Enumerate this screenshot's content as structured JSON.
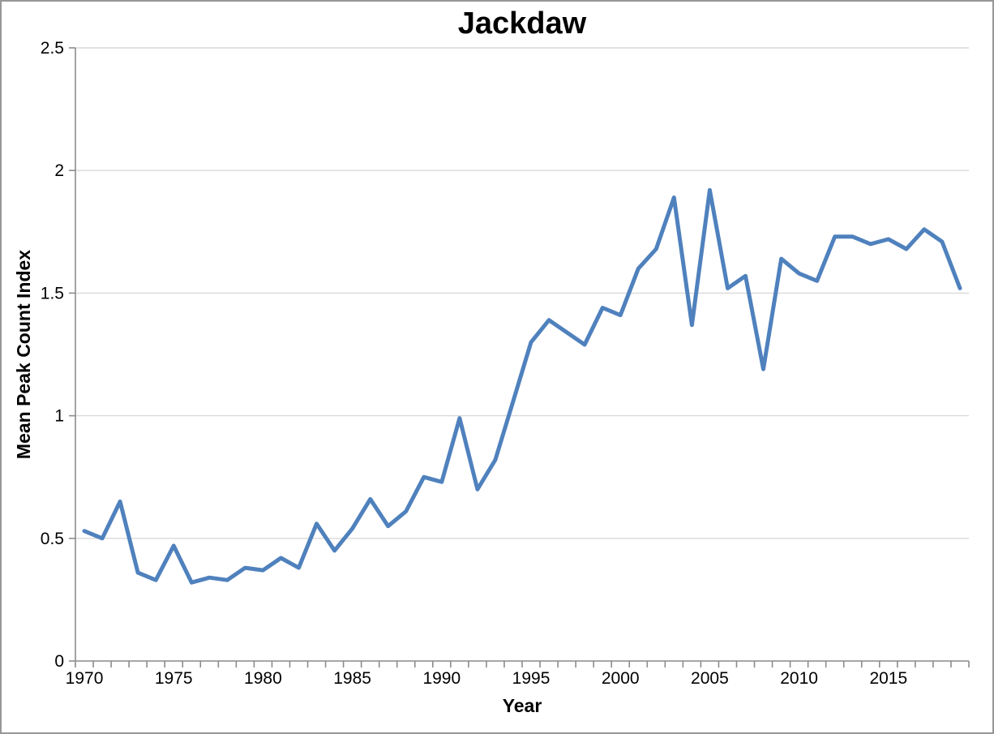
{
  "chart_data": {
    "type": "line",
    "title": "Jackdaw",
    "xlabel": "Year",
    "ylabel": "Mean Peak Count Index",
    "x": [
      1970,
      1971,
      1972,
      1973,
      1974,
      1975,
      1976,
      1977,
      1978,
      1979,
      1980,
      1981,
      1982,
      1983,
      1984,
      1985,
      1986,
      1987,
      1988,
      1989,
      1990,
      1991,
      1992,
      1993,
      1994,
      1995,
      1996,
      1997,
      1998,
      1999,
      2000,
      2001,
      2002,
      2003,
      2004,
      2005,
      2006,
      2007,
      2008,
      2009,
      2010,
      2011,
      2012,
      2013,
      2014,
      2015,
      2016,
      2017,
      2018,
      2019
    ],
    "values": [
      0.53,
      0.5,
      0.65,
      0.36,
      0.33,
      0.47,
      0.32,
      0.34,
      0.33,
      0.38,
      0.37,
      0.42,
      0.38,
      0.56,
      0.45,
      0.54,
      0.66,
      0.55,
      0.61,
      0.75,
      0.73,
      0.99,
      0.7,
      0.82,
      1.06,
      1.3,
      1.39,
      1.34,
      1.29,
      1.44,
      1.41,
      1.6,
      1.68,
      1.89,
      1.37,
      1.92,
      1.52,
      1.57,
      1.19,
      1.64,
      1.58,
      1.55,
      1.73,
      1.73,
      1.7,
      1.72,
      1.68,
      1.76,
      1.71,
      1.52
    ],
    "ylim": [
      0,
      2.5
    ],
    "ytick_step": 0.5,
    "ytick_labels": [
      "0",
      "0.5",
      "1",
      "1.5",
      "2",
      "2.5"
    ],
    "xtick_labels": [
      "1970",
      "1975",
      "1980",
      "1985",
      "1990",
      "1995",
      "2000",
      "2005",
      "2010",
      "2015"
    ],
    "grid": "horizontal-only",
    "legend": "none",
    "line_color": "#4F81BD",
    "gridline_color": "#D9D9D9",
    "axis_color": "#8C8C8C",
    "text_color": "#000000",
    "background": "#FFFFFF"
  }
}
